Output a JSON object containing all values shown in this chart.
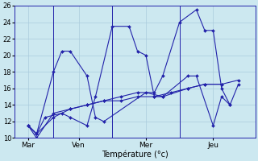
{
  "xlabel": "Température (°c)",
  "background_color": "#cce8f0",
  "grid_color": "#aaccdd",
  "line_color": "#2222aa",
  "ylim": [
    10,
    26
  ],
  "yticks": [
    10,
    12,
    14,
    16,
    18,
    20,
    22,
    24,
    26
  ],
  "xtick_labels": [
    "Mar",
    "Ven",
    "Mer",
    "Jeu"
  ],
  "xtick_pos": [
    0,
    3,
    7,
    11
  ],
  "vlines": [
    1.5,
    5.0,
    9.0
  ],
  "xlim": [
    -0.8,
    13.5
  ],
  "series": [
    {
      "x": [
        0,
        0.5,
        1.5,
        2.0,
        2.5,
        3.5,
        4.0,
        4.5,
        7.0,
        8.0,
        9.5,
        10.5,
        11.5
      ],
      "y": [
        11.5,
        10.5,
        18.0,
        20.5,
        20.5,
        17.5,
        12.5,
        12.0,
        15.5,
        15.0,
        16.0,
        16.5,
        16.5
      ]
    },
    {
      "x": [
        0,
        0.5,
        1.0,
        2.0,
        2.5,
        3.5,
        4.0,
        5.0,
        6.0,
        6.5,
        7.0,
        7.5,
        8.0,
        9.5,
        10.0,
        11.0,
        11.5,
        12.0
      ],
      "y": [
        11.5,
        10.5,
        12.5,
        13.0,
        12.5,
        11.5,
        15.0,
        23.5,
        23.5,
        20.5,
        20.0,
        15.0,
        15.0,
        17.5,
        17.5,
        11.5,
        15.0,
        14.0
      ]
    },
    {
      "x": [
        0,
        0.5,
        1.5,
        2.5,
        3.5,
        4.5,
        5.5,
        6.5,
        7.5,
        8.5,
        9.5,
        10.5,
        11.5,
        12.5
      ],
      "y": [
        11.5,
        10.5,
        12.5,
        13.5,
        14.0,
        14.5,
        14.5,
        15.0,
        15.0,
        15.5,
        16.0,
        16.5,
        16.5,
        17.0
      ]
    },
    {
      "x": [
        0,
        0.5,
        1.5,
        2.5,
        3.5,
        4.5,
        5.5,
        6.5,
        7.5,
        8.0,
        9.0,
        10.0,
        10.5,
        11.0,
        11.5,
        12.0,
        12.5
      ],
      "y": [
        11.5,
        10.0,
        13.0,
        13.5,
        14.0,
        14.5,
        15.0,
        15.5,
        15.5,
        17.5,
        24.0,
        25.5,
        23.0,
        23.0,
        16.0,
        14.0,
        16.5
      ]
    }
  ]
}
